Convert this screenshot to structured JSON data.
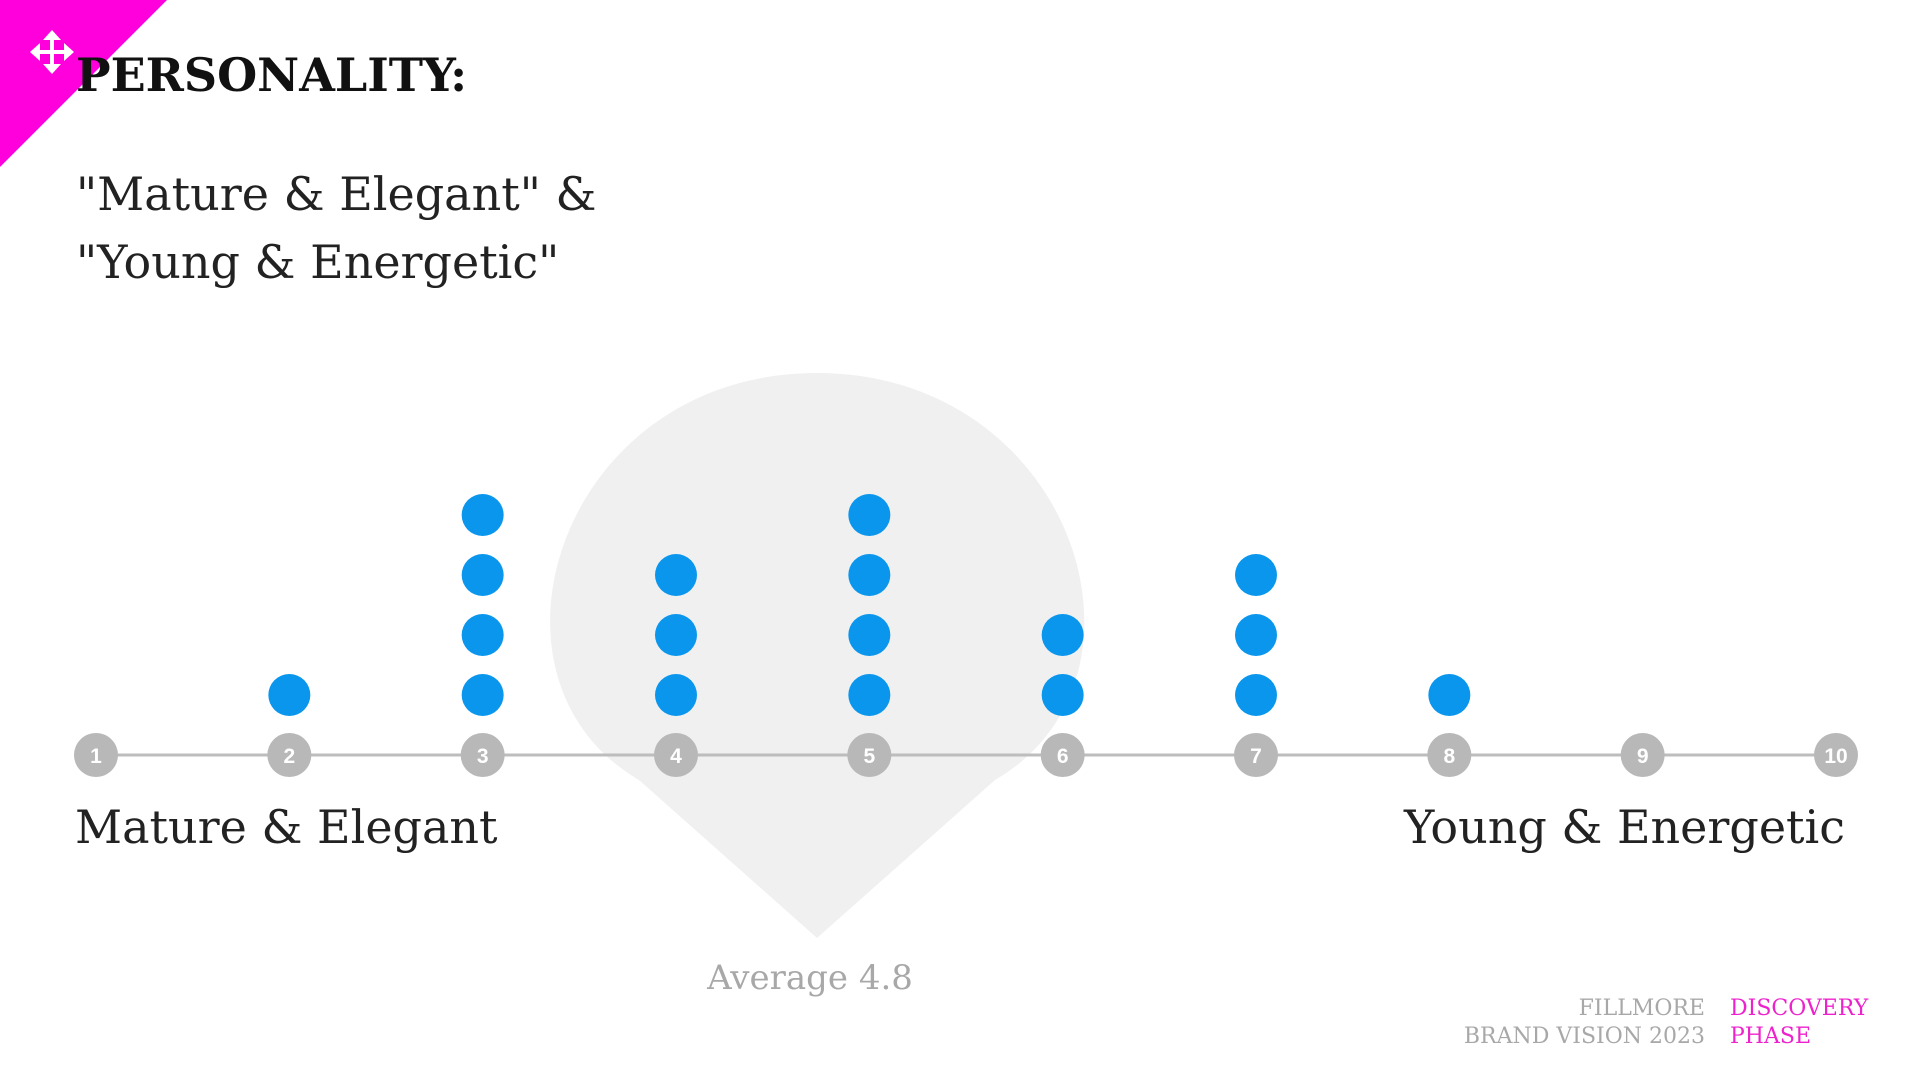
{
  "slide": {
    "title": "PERSONALITY:",
    "subtitle_line1": "\"Mature & Elegant\" &",
    "subtitle_line2": "\"Young & Energetic\""
  },
  "scale": {
    "left_label": "Mature & Elegant",
    "right_label": "Young & Energetic",
    "average_label": "Average 4.8"
  },
  "footer": {
    "brand_line1": "FILLMORE",
    "brand_line2": "BRAND VISION 2023",
    "phase_line1": "DISCOVERY",
    "phase_line2": "PHASE"
  },
  "colors": {
    "badge": "#ff00dd",
    "dot": "#0a96ec",
    "axis": "#bdbdbd",
    "tick": "#b8b8b8",
    "average_shape": "#f0f0f0",
    "accent_text": "#ee22cc"
  },
  "icons": {
    "corner": "move-arrows-icon"
  },
  "chart_data": {
    "type": "scatter",
    "title": "",
    "xlabel": "",
    "ylabel": "",
    "categories": [
      "1",
      "2",
      "3",
      "4",
      "5",
      "6",
      "7",
      "8",
      "9",
      "10"
    ],
    "x": [
      1,
      2,
      3,
      4,
      5,
      6,
      7,
      8,
      9,
      10
    ],
    "values": [
      0,
      1,
      4,
      3,
      4,
      2,
      3,
      1,
      0,
      0
    ],
    "average": 4.8,
    "xlim": [
      1,
      10
    ],
    "grid": false,
    "legend": "none"
  }
}
